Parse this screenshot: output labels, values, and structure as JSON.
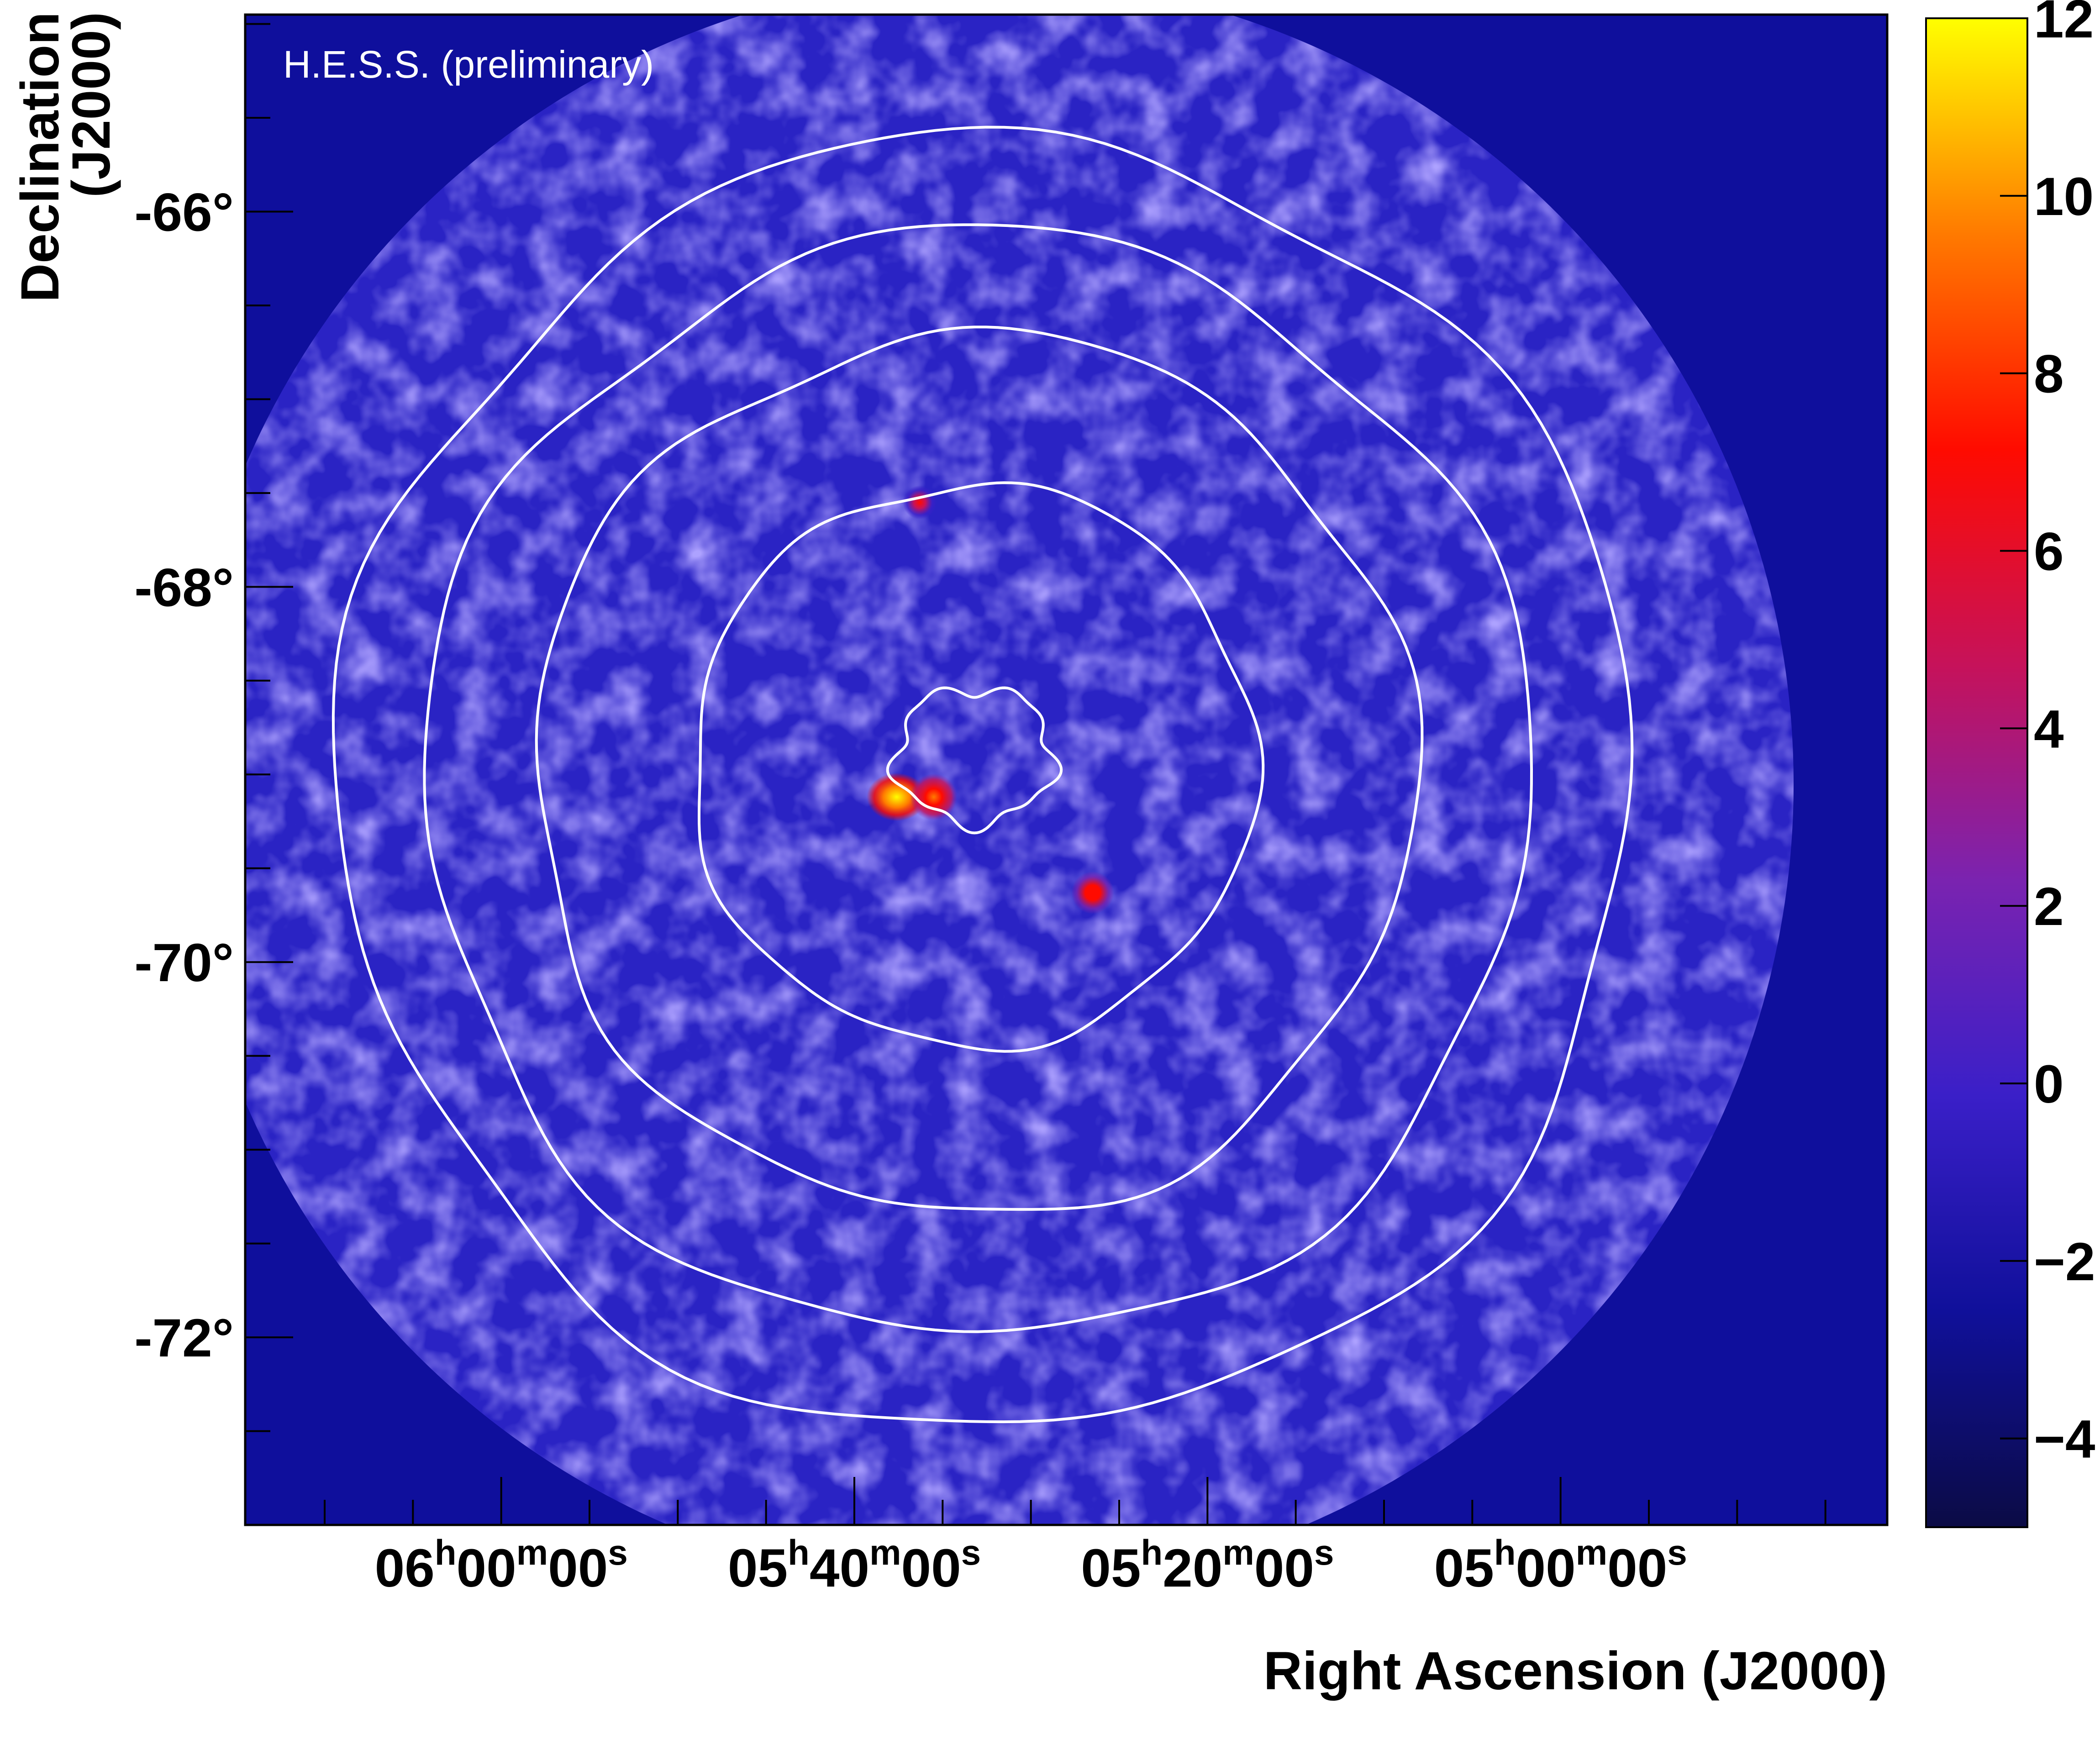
{
  "chart_data": {
    "type": "heatmap",
    "title": "H.E.S.S. (preliminary)",
    "xlabel": "Right Ascension (J2000)",
    "ylabel_line1": "Declination",
    "ylabel_line2": "(J2000)",
    "x_ticks": [
      {
        "value_minutes": 360,
        "hh": "06",
        "mm": "00",
        "ss": "00"
      },
      {
        "value_minutes": 340,
        "hh": "05",
        "mm": "40",
        "ss": "00"
      },
      {
        "value_minutes": 320,
        "hh": "05",
        "mm": "20",
        "ss": "00"
      },
      {
        "value_minutes": 300,
        "hh": "05",
        "mm": "00",
        "ss": "00"
      }
    ],
    "x_unit_symbols": {
      "h": "h",
      "m": "m",
      "s": "s"
    },
    "y_ticks": [
      {
        "value": -66,
        "label": "-66°"
      },
      {
        "value": -68,
        "label": "-68°"
      },
      {
        "value": -70,
        "label": "-70°"
      },
      {
        "value": -72,
        "label": "-72°"
      }
    ],
    "xlim_minutes": [
      374.5,
      281.5
    ],
    "ylim": [
      -73.0,
      -64.95
    ],
    "colorbar": {
      "range": [
        -5,
        12
      ],
      "ticks": [
        {
          "value": 12,
          "label": "12"
        },
        {
          "value": 10,
          "label": "10"
        },
        {
          "value": 8,
          "label": "8"
        },
        {
          "value": 6,
          "label": "6"
        },
        {
          "value": 4,
          "label": "4"
        },
        {
          "value": 2,
          "label": "2"
        },
        {
          "value": 0,
          "label": "0"
        },
        {
          "value": -2,
          "label": "−2"
        },
        {
          "value": -4,
          "label": "−4"
        }
      ],
      "colors": [
        "#0b0b45",
        "#10109a",
        "#3a1fc8",
        "#7a23b0",
        "#c6125a",
        "#ff0b00",
        "#ff7a00",
        "#ffff00"
      ]
    },
    "background_value": 0,
    "hot_spots": [
      {
        "ra_minutes": 337.6,
        "dec": -69.12,
        "value": 12
      },
      {
        "ra_minutes": 335.5,
        "dec": -69.12,
        "value": 9
      },
      {
        "ra_minutes": 326.5,
        "dec": -69.63,
        "value": 8
      },
      {
        "ra_minutes": 336.3,
        "dec": -67.55,
        "value": 6
      }
    ],
    "contours": [
      {
        "center_ra_minutes": 333.2,
        "center_dec": -68.9,
        "radius_deg": 0.42
      },
      {
        "center_ra_minutes": 333.2,
        "center_dec": -68.95,
        "radius_deg": 1.5
      },
      {
        "center_ra_minutes": 333.2,
        "center_dec": -69.0,
        "radius_deg": 2.35
      },
      {
        "center_ra_minutes": 333.0,
        "center_dec": -69.05,
        "radius_deg": 2.95
      },
      {
        "center_ra_minutes": 332.5,
        "center_dec": -69.05,
        "radius_deg": 3.45
      }
    ],
    "colors": {
      "map_background": "#0f0f9c",
      "exposure_disk": "#2a23c4",
      "contour": "#ffffff",
      "frame": "#000000"
    }
  }
}
